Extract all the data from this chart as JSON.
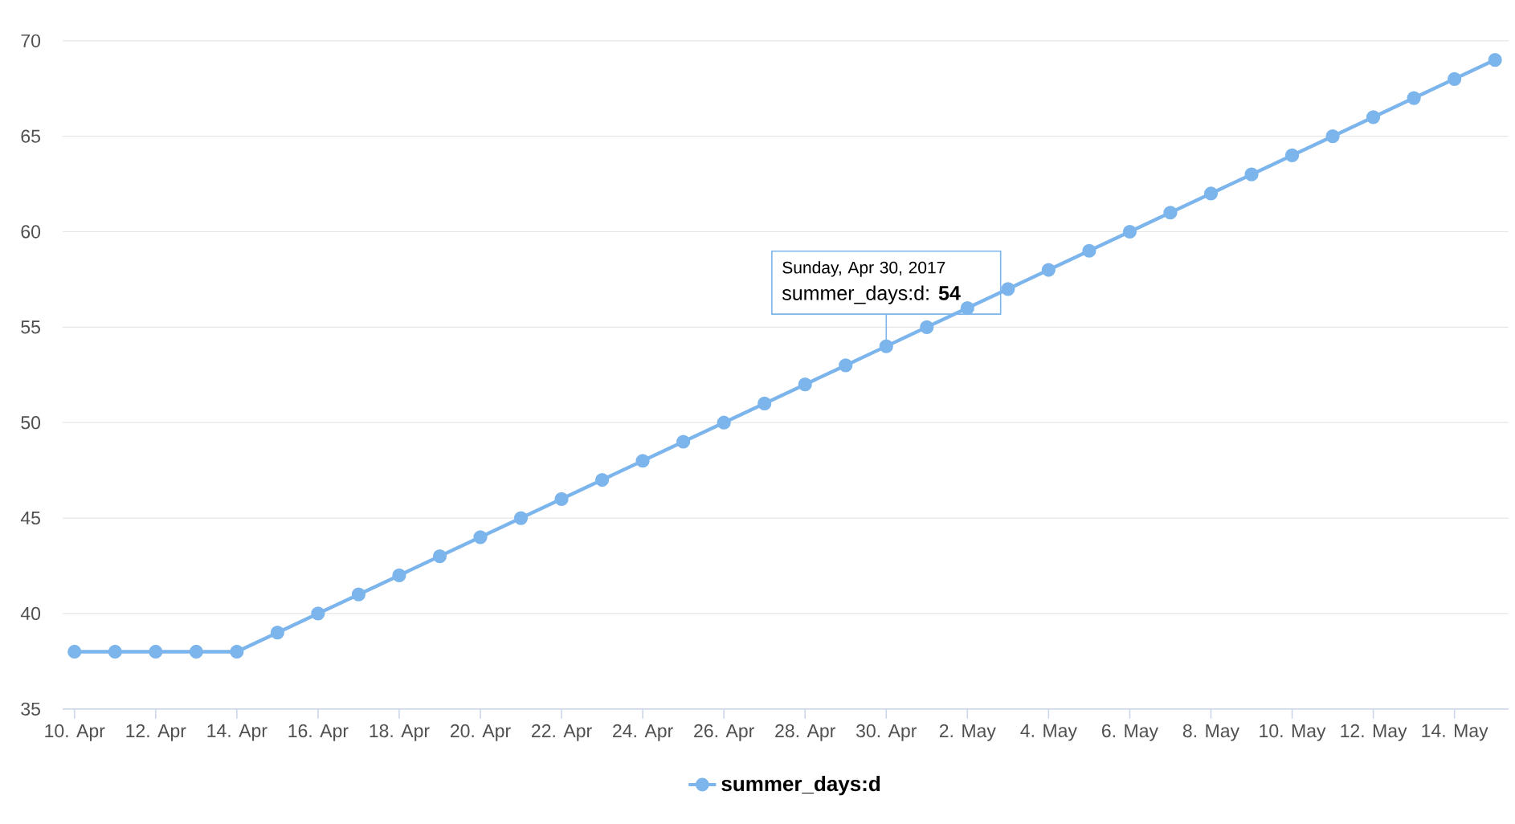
{
  "chart_data": {
    "type": "line",
    "x": [
      "2017-04-10",
      "2017-04-11",
      "2017-04-12",
      "2017-04-13",
      "2017-04-14",
      "2017-04-15",
      "2017-04-16",
      "2017-04-17",
      "2017-04-18",
      "2017-04-19",
      "2017-04-20",
      "2017-04-21",
      "2017-04-22",
      "2017-04-23",
      "2017-04-24",
      "2017-04-25",
      "2017-04-26",
      "2017-04-27",
      "2017-04-28",
      "2017-04-29",
      "2017-04-30",
      "2017-05-01",
      "2017-05-02",
      "2017-05-03",
      "2017-05-04",
      "2017-05-05",
      "2017-05-06",
      "2017-05-07",
      "2017-05-08",
      "2017-05-09",
      "2017-05-10",
      "2017-05-11",
      "2017-05-12",
      "2017-05-13",
      "2017-05-14",
      "2017-05-15"
    ],
    "series": [
      {
        "name": "summer_days:d",
        "color": "#7cb5ec",
        "values": [
          38,
          38,
          38,
          38,
          38,
          39,
          40,
          41,
          42,
          43,
          44,
          45,
          46,
          47,
          48,
          49,
          50,
          51,
          52,
          53,
          54,
          55,
          56,
          57,
          58,
          59,
          60,
          61,
          62,
          63,
          64,
          65,
          66,
          67,
          68,
          69
        ]
      }
    ],
    "xlim": [
      "2017-04-09T17:00",
      "2017-05-15T08:00"
    ],
    "xticks": [
      {
        "value": "2017-04-10",
        "label": "10. Apr"
      },
      {
        "value": "2017-04-12",
        "label": "12. Apr"
      },
      {
        "value": "2017-04-14",
        "label": "14. Apr"
      },
      {
        "value": "2017-04-16",
        "label": "16. Apr"
      },
      {
        "value": "2017-04-18",
        "label": "18. Apr"
      },
      {
        "value": "2017-04-20",
        "label": "20. Apr"
      },
      {
        "value": "2017-04-22",
        "label": "22. Apr"
      },
      {
        "value": "2017-04-24",
        "label": "24. Apr"
      },
      {
        "value": "2017-04-26",
        "label": "26. Apr"
      },
      {
        "value": "2017-04-28",
        "label": "28. Apr"
      },
      {
        "value": "2017-04-30",
        "label": "30. Apr"
      },
      {
        "value": "2017-05-02",
        "label": "2. May"
      },
      {
        "value": "2017-05-04",
        "label": "4. May"
      },
      {
        "value": "2017-05-06",
        "label": "6. May"
      },
      {
        "value": "2017-05-08",
        "label": "8. May"
      },
      {
        "value": "2017-05-10",
        "label": "10. May"
      },
      {
        "value": "2017-05-12",
        "label": "12. May"
      },
      {
        "value": "2017-05-14",
        "label": "14. May"
      }
    ],
    "ylim": [
      35,
      70
    ],
    "yticks": [
      35,
      40,
      45,
      50,
      55,
      60,
      65,
      70
    ],
    "grid": "y",
    "legend": "bottom",
    "marker": "circle",
    "annotations": [
      "Sunday, Apr 30, 2017",
      {
        "text": "summer_days:d: **54**",
        "x": "2017-04-30",
        "y": 54
      }
    ]
  }
}
